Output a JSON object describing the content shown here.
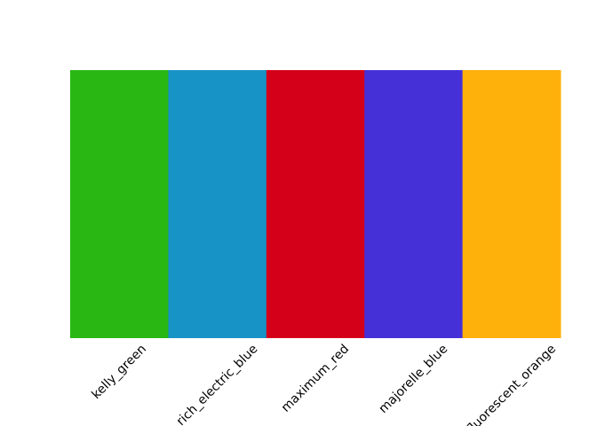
{
  "chart_data": {
    "type": "bar",
    "categories": [
      "kelly_green",
      "rich_electric_blue",
      "maximum_red",
      "majorelle_blue",
      "fluorescent_orange"
    ],
    "values": [
      1,
      1,
      1,
      1,
      1
    ],
    "colors": [
      "#29b714",
      "#1793c6",
      "#d40019",
      "#4530d8",
      "#ffb10b"
    ],
    "title": "",
    "xlabel": "",
    "ylabel": "",
    "axes_visible": false,
    "grid": false,
    "tick_label_rotation_deg": 45
  }
}
